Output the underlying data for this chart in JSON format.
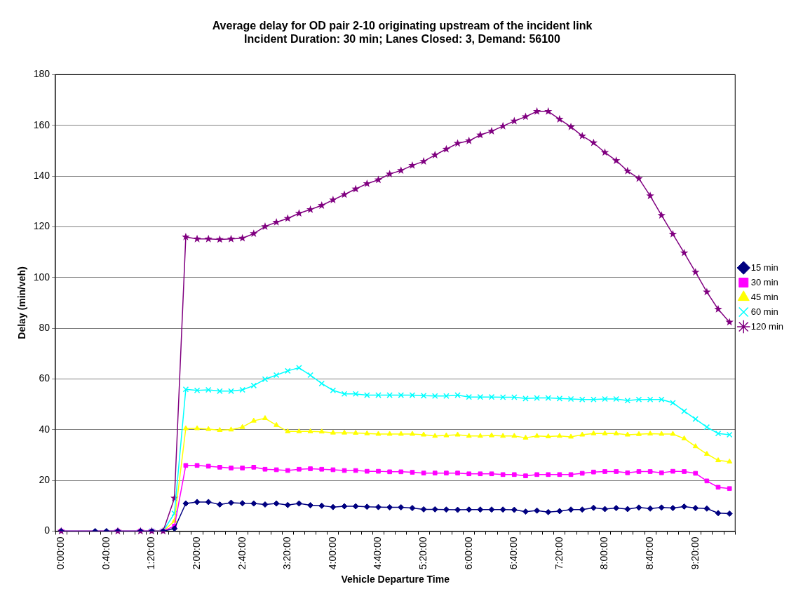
{
  "chart_data": {
    "type": "line",
    "title": "Average delay for OD pair 2-10 originating upstream of the incident link",
    "subtitle": "Incident Duration: 30 min; Lanes Closed: 3, Demand: 56100",
    "xlabel": "Vehicle Departure Time",
    "ylabel": "Delay (min/veh)",
    "categories": [
      "0:00:00",
      null,
      null,
      null,
      "0:40:00",
      null,
      null,
      null,
      "1:20:00",
      null,
      null,
      null,
      "2:00:00",
      null,
      null,
      null,
      "2:40:00",
      null,
      null,
      null,
      "3:20:00",
      null,
      null,
      null,
      "4:00:00",
      null,
      null,
      null,
      "4:40:00",
      null,
      null,
      null,
      "5:20:00",
      null,
      null,
      null,
      "6:00:00",
      null,
      null,
      null,
      "6:40:00",
      null,
      null,
      null,
      "7:20:00",
      null,
      null,
      null,
      "8:00:00",
      null,
      null,
      null,
      "8:40:00",
      null,
      null,
      null,
      "9:20:00",
      null,
      null,
      null
    ],
    "series": [
      {
        "name": "15 min",
        "color": "#000080",
        "marker": "diamond",
        "values": [
          0,
          null,
          null,
          0,
          0,
          0,
          null,
          0,
          0,
          0,
          1,
          10.9,
          11.5,
          11.5,
          10.5,
          11.2,
          11,
          10.9,
          10.5,
          10.9,
          10.3,
          10.9,
          10.2,
          10,
          9.5,
          9.8,
          9.8,
          9.6,
          9.5,
          9.4,
          9.4,
          9.1,
          8.6,
          8.6,
          8.5,
          8.4,
          8.5,
          8.5,
          8.5,
          8.5,
          8.4,
          7.7,
          8.1,
          7.5,
          7.9,
          8.5,
          8.5,
          9.2,
          8.7,
          9.1,
          8.7,
          9.3,
          8.9,
          9.3,
          9.1,
          9.7,
          9.1,
          8.9,
          7.1,
          6.9
        ]
      },
      {
        "name": "30 min",
        "color": "#ff00ff",
        "marker": "square",
        "values": [
          0,
          null,
          null,
          null,
          null,
          0,
          null,
          0,
          0,
          0,
          2,
          25.9,
          25.9,
          25.6,
          25.2,
          24.9,
          24.9,
          25.2,
          24.4,
          24.2,
          23.9,
          24.4,
          24.6,
          24.4,
          24.2,
          23.9,
          23.9,
          23.6,
          23.6,
          23.4,
          23.4,
          23.2,
          22.9,
          22.9,
          22.9,
          22.9,
          22.6,
          22.6,
          22.6,
          22.3,
          22.3,
          21.8,
          22.3,
          22.3,
          22.3,
          22.3,
          22.8,
          23.3,
          23.5,
          23.5,
          23.0,
          23.5,
          23.5,
          23.0,
          23.6,
          23.5,
          22.8,
          19.8,
          17.3,
          16.8
        ]
      },
      {
        "name": "45 min",
        "color": "#ffff00",
        "marker": "triangle",
        "values": [
          null,
          null,
          null,
          null,
          null,
          null,
          null,
          null,
          0,
          0,
          4,
          40.5,
          40.5,
          40.2,
          39.8,
          40,
          41,
          43.5,
          44.5,
          41.8,
          39.3,
          39.3,
          39.3,
          39.2,
          38.8,
          38.8,
          38.7,
          38.5,
          38.3,
          38.3,
          38.3,
          38.3,
          38,
          37.5,
          37.7,
          38,
          37.5,
          37.5,
          37.7,
          37.5,
          37.5,
          36.8,
          37.5,
          37.3,
          37.5,
          37.2,
          38,
          38.5,
          38.5,
          38.5,
          38,
          38.2,
          38.4,
          38.3,
          38.3,
          36.5,
          33.4,
          30.4,
          27.9,
          27.4
        ]
      },
      {
        "name": "60 min",
        "color": "#00ffff",
        "marker": "cross",
        "values": [
          null,
          null,
          null,
          null,
          null,
          null,
          null,
          null,
          0,
          0,
          7,
          55.9,
          55.5,
          55.7,
          55.2,
          55.2,
          55.7,
          57.4,
          59.9,
          61.5,
          63.2,
          64.4,
          61.5,
          58.2,
          55.5,
          54.1,
          54.1,
          53.6,
          53.6,
          53.6,
          53.6,
          53.6,
          53.4,
          53.3,
          53.3,
          53.6,
          52.9,
          52.9,
          52.9,
          52.8,
          52.8,
          52.3,
          52.5,
          52.5,
          52.3,
          52.1,
          51.9,
          51.9,
          52.1,
          52.1,
          51.5,
          51.9,
          51.9,
          51.9,
          50.6,
          47.3,
          44.2,
          41,
          38.5,
          38
        ]
      },
      {
        "name": "120 min",
        "color": "#800080",
        "marker": "star",
        "values": [
          0,
          null,
          null,
          null,
          null,
          0,
          null,
          0,
          0,
          0,
          13,
          116,
          115.2,
          115.2,
          115,
          115.2,
          115.5,
          117.3,
          120.1,
          121.8,
          123.3,
          125.3,
          126.8,
          128.4,
          130.6,
          132.7,
          134.9,
          137,
          138.5,
          140.8,
          142.2,
          144.2,
          145.8,
          148.3,
          150.6,
          152.9,
          153.9,
          156.2,
          157.7,
          159.7,
          161.7,
          163.4,
          165.5,
          165.5,
          162.4,
          159.4,
          155.8,
          153.1,
          149.3,
          146.1,
          142,
          139,
          132.2,
          124.5,
          117.1,
          109.7,
          102.1,
          94.3,
          87.5,
          82.4
        ]
      }
    ],
    "ylim": [
      0,
      180
    ],
    "yticks": [
      0,
      20,
      40,
      60,
      80,
      100,
      120,
      140,
      160,
      180
    ],
    "grid": "y",
    "legend": "right"
  }
}
